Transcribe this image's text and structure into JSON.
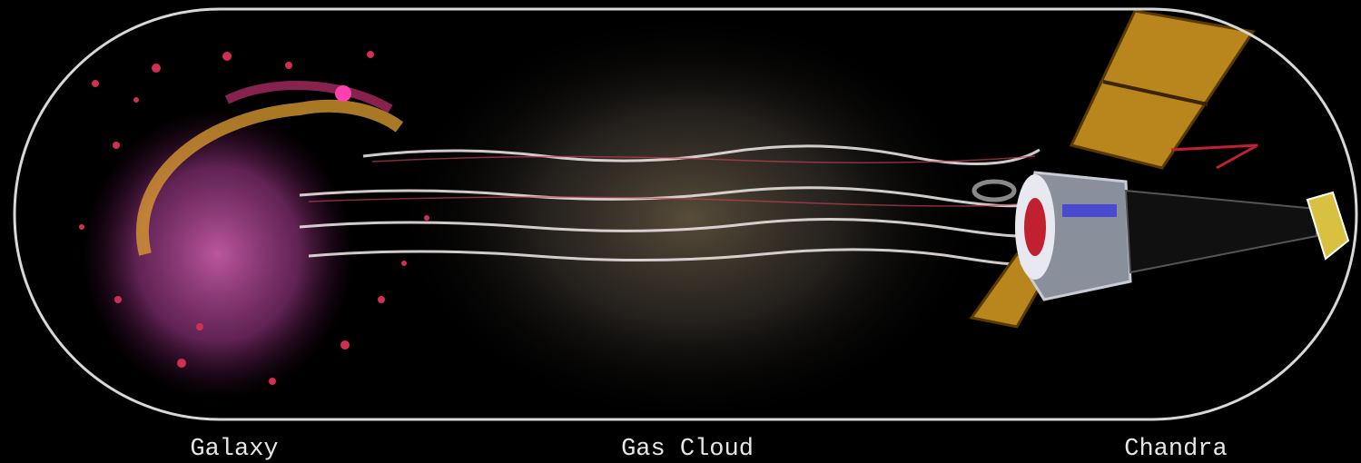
{
  "labels": [
    "Galaxy",
    "Gas Cloud",
    "Chandra"
  ]
}
